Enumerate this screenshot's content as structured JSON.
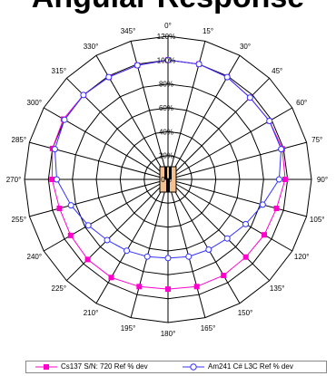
{
  "title": "Angular Response",
  "chart_data": {
    "type": "polar-line",
    "angles": [
      0,
      15,
      30,
      45,
      60,
      75,
      90,
      105,
      120,
      135,
      150,
      165,
      180,
      195,
      210,
      225,
      240,
      255,
      270,
      285,
      300,
      315,
      330,
      345
    ],
    "angle_labels": [
      "0°",
      "15°",
      "30°",
      "45°",
      "60°",
      "75°",
      "90°",
      "105°",
      "120°",
      "135°",
      "150°",
      "165°",
      "180°",
      "195°",
      "210°",
      "225°",
      "240°",
      "255°",
      "270°",
      "285°",
      "300°",
      "315°",
      "330°",
      "345°"
    ],
    "radial_ticks": [
      0,
      20,
      40,
      60,
      80,
      100,
      120
    ],
    "radial_tick_labels": [
      "0%",
      "20%",
      "40%",
      "60%",
      "80%",
      "100%",
      "120%"
    ],
    "rlim": [
      0,
      120
    ],
    "grid": true,
    "legend_position": "bottom",
    "series": [
      {
        "name": "Cs137 S/N: 720 Ref % dev",
        "color": "#ff00cc",
        "marker": "square",
        "values": [
          100,
          100,
          99,
          97,
          98,
          99,
          98,
          94,
          93,
          92,
          93,
          93,
          92,
          93,
          95,
          95,
          94,
          94,
          97,
          100,
          101,
          100,
          99,
          99
        ]
      },
      {
        "name": "Am241 C# L3C Ref % dev",
        "color": "#3333ff",
        "marker": "circle",
        "values": [
          100,
          100,
          99,
          97,
          98,
          98,
          93,
          82,
          75,
          70,
          68,
          67,
          66,
          67,
          69,
          72,
          77,
          84,
          93,
          98,
          100,
          100,
          99,
          99
        ]
      }
    ]
  }
}
